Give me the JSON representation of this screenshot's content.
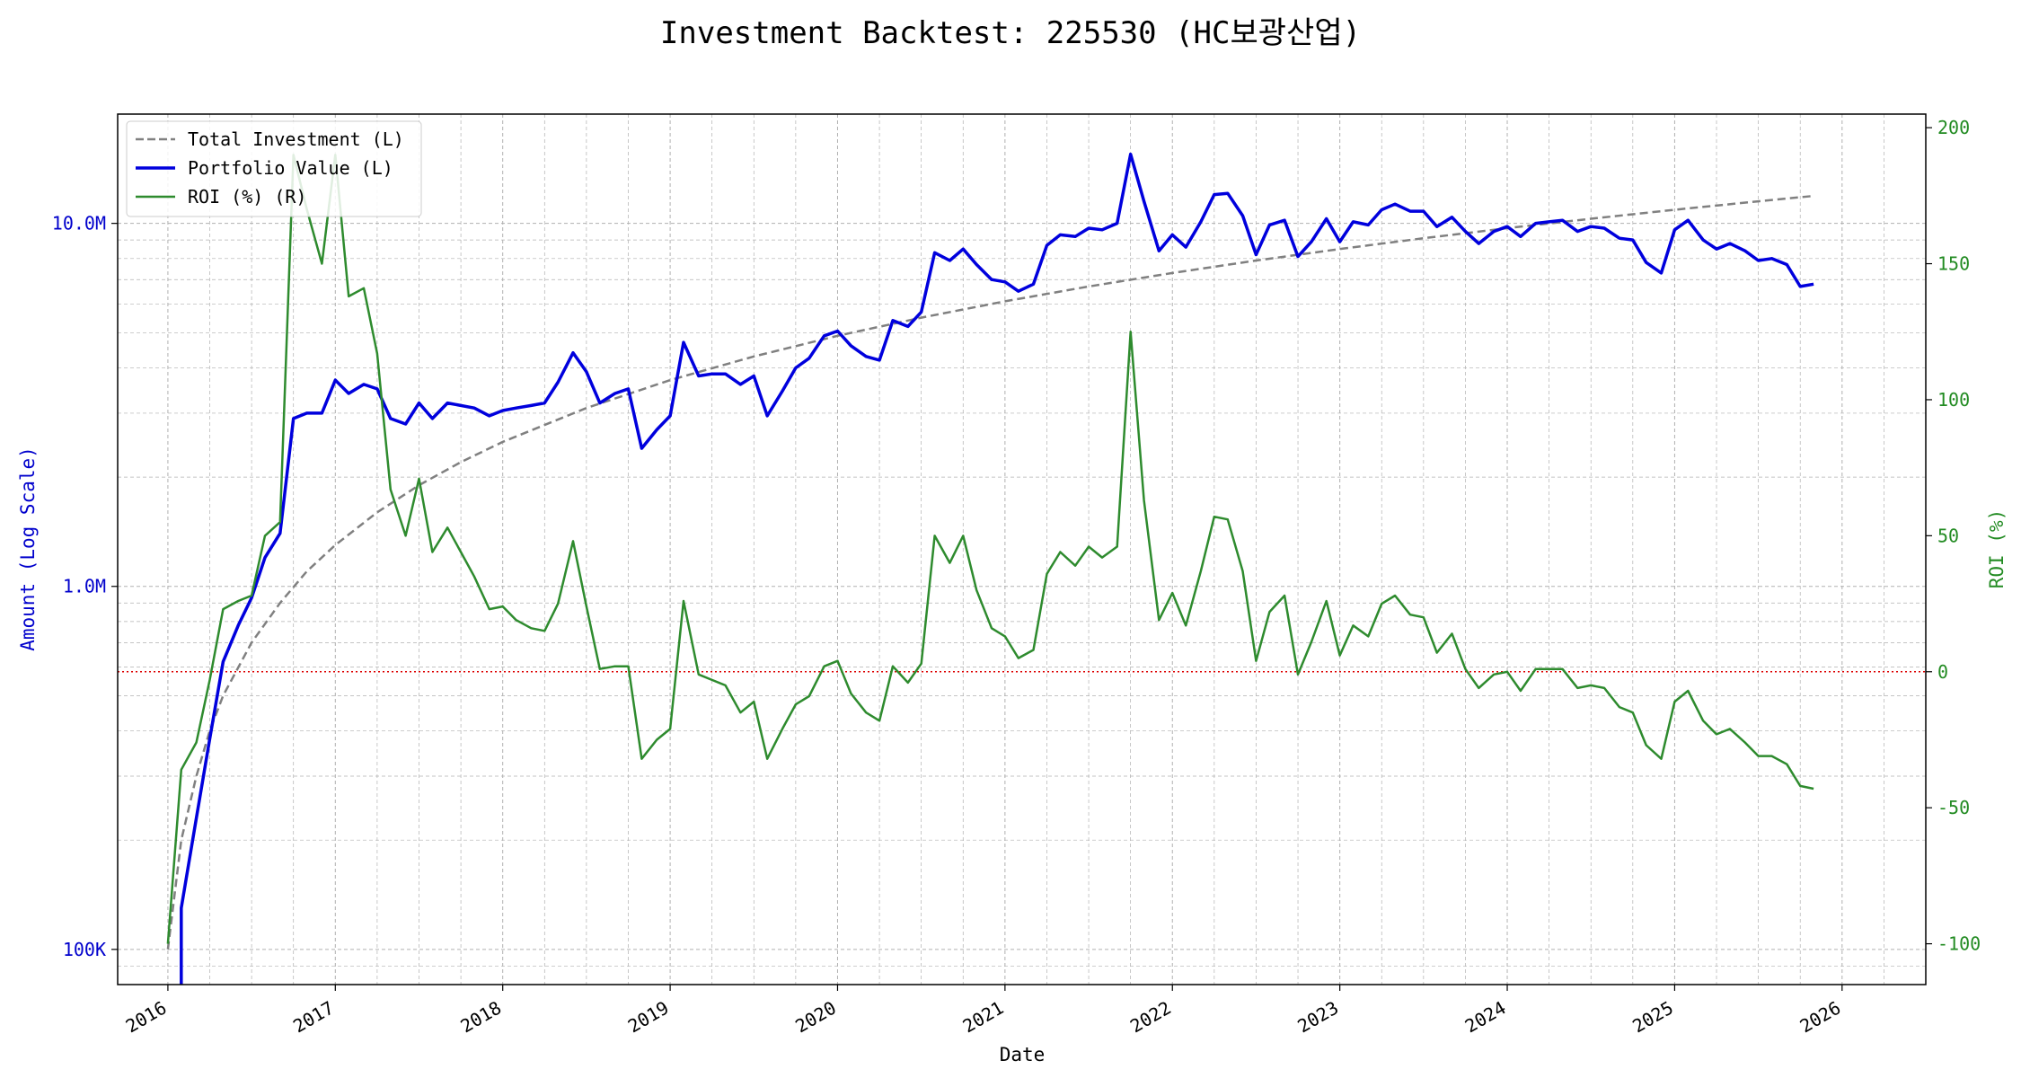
{
  "chart_data": {
    "type": "line",
    "title": "Investment Backtest: 225530 (HC보광산업)",
    "xlabel": "Date",
    "ylabel_left": "Amount (Log Scale)",
    "ylabel_right": "ROI (%)",
    "left_scale": "log",
    "left_ylim": [
      80000,
      20000000
    ],
    "right_ylim": [
      -115,
      205
    ],
    "xlim": [
      2015.7,
      2026.5
    ],
    "grid": true,
    "legend_location": "top-left",
    "x_tick_labels": [
      "2016",
      "2017",
      "2018",
      "2019",
      "2020",
      "2021",
      "2022",
      "2023",
      "2024",
      "2025",
      "2026"
    ],
    "x_tick_values": [
      2016,
      2017,
      2018,
      2019,
      2020,
      2021,
      2022,
      2023,
      2024,
      2025,
      2026
    ],
    "left_tick_labels": [
      "100K",
      "1.0M",
      "10.0M"
    ],
    "left_tick_values": [
      100000,
      1000000,
      10000000
    ],
    "right_tick_labels": [
      "200",
      "150",
      "100",
      "50",
      "0",
      "-50",
      "-100"
    ],
    "right_tick_values": [
      200,
      150,
      100,
      50,
      0,
      -50,
      -100
    ],
    "zero_line_value": 0,
    "colors": {
      "total_investment": "#808080",
      "portfolio": "#0000dd",
      "roi": "#2e8b2e",
      "zero_line": "#dd0000",
      "left_axis": "#0000cc",
      "right_axis": "#228b22",
      "grid": "#b0b0b0"
    },
    "series": [
      {
        "name": "Total Investment (L)",
        "axis": "left",
        "style": "dashed",
        "x": [
          2016.0,
          2016.08,
          2016.17,
          2016.25,
          2016.33,
          2016.5,
          2016.67,
          2016.83,
          2017.0,
          2017.25,
          2017.5,
          2017.75,
          2018.0,
          2018.5,
          2019.0,
          2019.5,
          2020.0,
          2020.5,
          2021.0,
          2021.5,
          2022.0,
          2022.5,
          2023.0,
          2023.5,
          2024.0,
          2024.5,
          2025.0,
          2025.5,
          2025.83
        ],
        "values": [
          100000,
          200000,
          300000,
          400000,
          500000,
          700000,
          900000,
          1100000,
          1300000,
          1600000,
          1900000,
          2200000,
          2500000,
          3100000,
          3700000,
          4300000,
          4900000,
          5500000,
          6100000,
          6700000,
          7300000,
          7900000,
          8500000,
          9100000,
          9700000,
          10300000,
          10900000,
          11500000,
          11900000
        ]
      },
      {
        "name": "Portfolio Value (L)",
        "axis": "left",
        "style": "solid",
        "x": [
          2016.08,
          2016.08,
          2016.17,
          2016.25,
          2016.33,
          2016.42,
          2016.5,
          2016.58,
          2016.67,
          2016.75,
          2016.83,
          2016.92,
          2017.0,
          2017.08,
          2017.17,
          2017.25,
          2017.33,
          2017.42,
          2017.5,
          2017.58,
          2017.67,
          2017.83,
          2017.92,
          2018.0,
          2018.08,
          2018.17,
          2018.25,
          2018.33,
          2018.42,
          2018.5,
          2018.58,
          2018.67,
          2018.75,
          2018.83,
          2018.92,
          2019.0,
          2019.08,
          2019.17,
          2019.25,
          2019.33,
          2019.42,
          2019.5,
          2019.58,
          2019.67,
          2019.75,
          2019.83,
          2019.92,
          2020.0,
          2020.08,
          2020.17,
          2020.25,
          2020.33,
          2020.42,
          2020.5,
          2020.58,
          2020.67,
          2020.75,
          2020.83,
          2020.92,
          2021.0,
          2021.08,
          2021.17,
          2021.25,
          2021.33,
          2021.42,
          2021.5,
          2021.58,
          2021.67,
          2021.75,
          2021.83,
          2021.92,
          2022.0,
          2022.08,
          2022.17,
          2022.25,
          2022.33,
          2022.42,
          2022.5,
          2022.58,
          2022.67,
          2022.75,
          2022.83,
          2022.92,
          2023.0,
          2023.08,
          2023.17,
          2023.25,
          2023.33,
          2023.42,
          2023.5,
          2023.58,
          2023.67,
          2023.75,
          2023.83,
          2023.92,
          2024.0,
          2024.08,
          2024.17,
          2024.25,
          2024.33,
          2024.42,
          2024.5,
          2024.58,
          2024.67,
          2024.75,
          2024.83,
          2024.92,
          2025.0,
          2025.08,
          2025.17,
          2025.25,
          2025.33,
          2025.42,
          2025.5,
          2025.58,
          2025.67,
          2025.75,
          2025.83
        ],
        "values": [
          70000,
          130000,
          230000,
          380000,
          620000,
          780000,
          930000,
          1200000,
          1400000,
          2900000,
          3000000,
          3000000,
          3700000,
          3400000,
          3600000,
          3500000,
          2900000,
          2800000,
          3200000,
          2900000,
          3200000,
          3100000,
          2950000,
          3050000,
          3100000,
          3150000,
          3200000,
          3650000,
          4400000,
          3900000,
          3200000,
          3400000,
          3500000,
          2400000,
          2700000,
          2950000,
          4700000,
          3800000,
          3850000,
          3850000,
          3600000,
          3800000,
          2950000,
          3450000,
          4000000,
          4250000,
          4900000,
          5050000,
          4600000,
          4300000,
          4200000,
          5400000,
          5200000,
          5700000,
          8300000,
          7900000,
          8500000,
          7700000,
          7000000,
          6900000,
          6500000,
          6800000,
          8700000,
          9300000,
          9200000,
          9700000,
          9600000,
          10000000,
          15500000,
          11500000,
          8400000,
          9300000,
          8600000,
          10100000,
          12000000,
          12100000,
          10500000,
          8200000,
          9900000,
          10200000,
          8100000,
          8900000,
          10300000,
          8900000,
          10100000,
          9900000,
          10900000,
          11300000,
          10800000,
          10800000,
          9800000,
          10400000,
          9500000,
          8800000,
          9500000,
          9800000,
          9200000,
          10000000,
          10100000,
          10200000,
          9500000,
          9800000,
          9700000,
          9100000,
          9000000,
          7800000,
          7300000,
          9600000,
          10200000,
          9000000,
          8500000,
          8800000,
          8400000,
          7900000,
          8000000,
          7700000,
          6700000,
          6800000
        ]
      },
      {
        "name": "ROI (%) (R)",
        "axis": "right",
        "style": "solid",
        "x": [
          2016.0,
          2016.08,
          2016.17,
          2016.25,
          2016.33,
          2016.42,
          2016.5,
          2016.58,
          2016.67,
          2016.75,
          2016.83,
          2016.92,
          2017.0,
          2017.08,
          2017.17,
          2017.25,
          2017.33,
          2017.42,
          2017.5,
          2017.58,
          2017.67,
          2017.83,
          2017.92,
          2018.0,
          2018.08,
          2018.17,
          2018.25,
          2018.33,
          2018.42,
          2018.5,
          2018.58,
          2018.67,
          2018.75,
          2018.83,
          2018.92,
          2019.0,
          2019.08,
          2019.17,
          2019.25,
          2019.33,
          2019.42,
          2019.5,
          2019.58,
          2019.67,
          2019.75,
          2019.83,
          2019.92,
          2020.0,
          2020.08,
          2020.17,
          2020.25,
          2020.33,
          2020.42,
          2020.5,
          2020.58,
          2020.67,
          2020.75,
          2020.83,
          2020.92,
          2021.0,
          2021.08,
          2021.17,
          2021.25,
          2021.33,
          2021.42,
          2021.5,
          2021.58,
          2021.67,
          2021.75,
          2021.83,
          2021.92,
          2022.0,
          2022.08,
          2022.17,
          2022.25,
          2022.33,
          2022.42,
          2022.5,
          2022.58,
          2022.67,
          2022.75,
          2022.83,
          2022.92,
          2023.0,
          2023.08,
          2023.17,
          2023.25,
          2023.33,
          2023.42,
          2023.5,
          2023.58,
          2023.67,
          2023.75,
          2023.83,
          2023.92,
          2024.0,
          2024.08,
          2024.17,
          2024.25,
          2024.33,
          2024.42,
          2024.5,
          2024.58,
          2024.67,
          2024.75,
          2024.83,
          2024.92,
          2025.0,
          2025.08,
          2025.17,
          2025.25,
          2025.33,
          2025.42,
          2025.5,
          2025.58,
          2025.67,
          2025.75,
          2025.83
        ],
        "values": [
          -100,
          -36,
          -26,
          -3,
          23,
          26,
          28,
          50,
          55,
          190,
          170,
          150,
          190,
          138,
          141,
          117,
          67,
          50,
          71,
          44,
          53,
          35,
          23,
          24,
          19,
          16,
          15,
          25,
          48,
          24,
          1,
          2,
          2,
          -32,
          -25,
          -21,
          26,
          -1,
          -3,
          -5,
          -15,
          -11,
          -32,
          -21,
          -12,
          -9,
          2,
          4,
          -8,
          -15,
          -18,
          2,
          -4,
          3,
          50,
          40,
          50,
          30,
          16,
          13,
          5,
          8,
          36,
          44,
          39,
          46,
          42,
          46,
          125,
          63,
          19,
          29,
          17,
          37,
          57,
          56,
          37,
          4,
          22,
          28,
          -1,
          11,
          26,
          6,
          17,
          13,
          25,
          28,
          21,
          20,
          7,
          14,
          1,
          -6,
          -1,
          0,
          -7,
          1,
          1,
          1,
          -6,
          -5,
          -6,
          -13,
          -15,
          -27,
          -32,
          -11,
          -7,
          -18,
          -23,
          -21,
          -26,
          -31,
          -31,
          -34,
          -42,
          -43
        ]
      }
    ]
  }
}
